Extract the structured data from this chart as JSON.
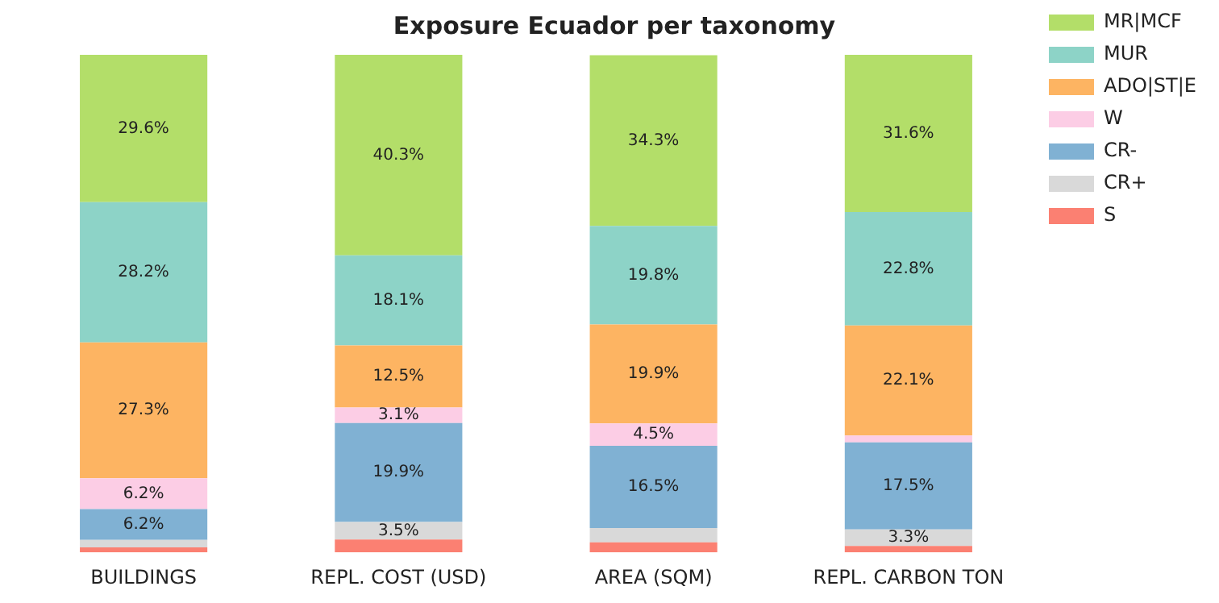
{
  "chart_data": {
    "type": "bar",
    "title": "Exposure Ecuador per taxonomy",
    "categories": [
      "BUILDINGS",
      "REPL. COST (USD)",
      "AREA (SQM)",
      "REPL. CARBON TON"
    ],
    "stacked": true,
    "ylim": [
      0,
      100
    ],
    "tick_labels": "x",
    "grid": false,
    "legend": "top right",
    "series": [
      {
        "name": "S",
        "color": "#fb8072",
        "values": [
          1.0,
          2.6,
          2.0,
          1.3
        ],
        "value_labels": [
          null,
          null,
          null,
          null
        ]
      },
      {
        "name": "CR+",
        "color": "#d9d9d9",
        "values": [
          1.5,
          3.5,
          2.9,
          3.3
        ],
        "value_labels": [
          null,
          "3.5%",
          null,
          "3.3%"
        ]
      },
      {
        "name": "CR-",
        "color": "#80b1d3",
        "values": [
          6.2,
          19.9,
          16.5,
          17.5
        ],
        "value_labels": [
          "6.2%",
          "19.9%",
          "16.5%",
          "17.5%"
        ]
      },
      {
        "name": "W",
        "color": "#fccde5",
        "values": [
          6.2,
          3.1,
          4.5,
          1.4
        ],
        "value_labels": [
          "6.2%",
          "3.1%",
          "4.5%",
          null
        ]
      },
      {
        "name": "ADO|ST|E",
        "color": "#fdb462",
        "values": [
          27.3,
          12.5,
          19.9,
          22.1
        ],
        "value_labels": [
          "27.3%",
          "12.5%",
          "19.9%",
          "22.1%"
        ]
      },
      {
        "name": "MUR",
        "color": "#8dd3c7",
        "values": [
          28.2,
          18.1,
          19.8,
          22.8
        ],
        "value_labels": [
          "28.2%",
          "18.1%",
          "19.8%",
          "22.8%"
        ]
      },
      {
        "name": "MR|MCF",
        "color": "#b3de69",
        "values": [
          29.6,
          40.3,
          34.3,
          31.6
        ],
        "value_labels": [
          "29.6%",
          "40.3%",
          "34.3%",
          "31.6%"
        ]
      }
    ]
  }
}
